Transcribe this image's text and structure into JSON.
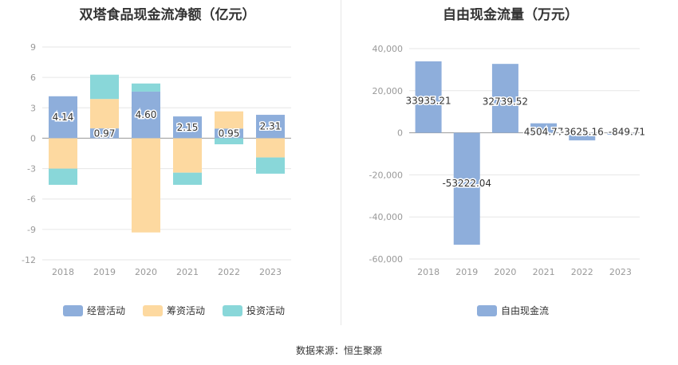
{
  "source_label": "数据来源：恒生聚源",
  "colors": {
    "operating": "#8eaedb",
    "financing": "#fdd9a0",
    "investing": "#89d7d9",
    "fcf": "#8eaedb",
    "grid": "#e6e6e6",
    "axis_text": "#999999",
    "label_text": "#333333"
  },
  "chart_data": [
    {
      "type": "bar",
      "stacked": true,
      "title": "双塔食品现金流净额（亿元）",
      "categories": [
        "2018",
        "2019",
        "2020",
        "2021",
        "2022",
        "2023"
      ],
      "ylim": [
        -12,
        9
      ],
      "yticks": [
        9,
        6,
        3,
        0,
        -3,
        -6,
        -9,
        -12
      ],
      "grid": true,
      "legend_position": "bottom",
      "series": [
        {
          "name": "经营活动",
          "color_key": "operating",
          "values": [
            4.14,
            0.97,
            4.6,
            2.15,
            0.95,
            2.31
          ],
          "labels": [
            "4.14",
            "0.97",
            "4.60",
            "2.15",
            "0.95",
            "2.31"
          ]
        },
        {
          "name": "筹资活动",
          "color_key": "financing",
          "values": [
            -3.0,
            2.9,
            -9.3,
            -3.4,
            1.7,
            -1.9
          ]
        },
        {
          "name": "投资活动",
          "color_key": "investing",
          "values": [
            -1.6,
            2.4,
            0.8,
            -1.2,
            -0.6,
            -1.6
          ]
        }
      ]
    },
    {
      "type": "bar",
      "title": "自由现金流量（万元）",
      "categories": [
        "2018",
        "2019",
        "2020",
        "2021",
        "2022",
        "2023"
      ],
      "ylim": [
        -60000,
        40000
      ],
      "yticks": [
        "40,000",
        "20,000",
        "0",
        "-20,000",
        "-40,000",
        "-60,000"
      ],
      "ytick_values": [
        40000,
        20000,
        0,
        -20000,
        -40000,
        -60000
      ],
      "grid": true,
      "legend_position": "bottom",
      "series": [
        {
          "name": "自由现金流",
          "color_key": "fcf",
          "values": [
            33935.21,
            -53222.04,
            32739.52,
            4504.77,
            -3625.16,
            -849.71
          ],
          "labels": [
            "33935.21",
            "-53222.04",
            "32739.52",
            "4504.77",
            "-3625.16",
            "-849.71"
          ]
        }
      ]
    }
  ]
}
